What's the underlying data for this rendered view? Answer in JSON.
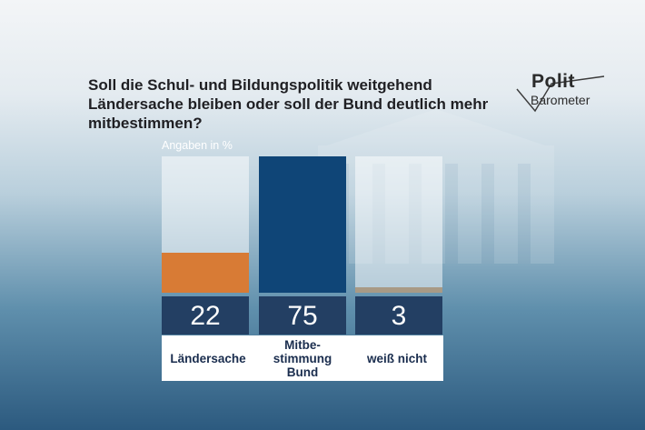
{
  "header": {
    "question": "Soll die Schul- und Bildungspolitik weitgehend Ländersache bleiben oder soll der Bund deutlich mehr mitbestimmen?"
  },
  "logo": {
    "line1": "Polit",
    "line2": "Barometer"
  },
  "chart_data": {
    "type": "bar",
    "unit_label": "Angaben in %",
    "categories": [
      "Ländersache",
      "Mitbe-\nstimmung\nBund",
      "weiß nicht"
    ],
    "values": [
      22,
      75,
      3
    ],
    "value_labels": [
      "22",
      "75",
      "3"
    ],
    "colors": [
      "#d87b35",
      "#0f4577",
      "#a89a86"
    ],
    "ylim": [
      0,
      75
    ],
    "grid": false
  }
}
